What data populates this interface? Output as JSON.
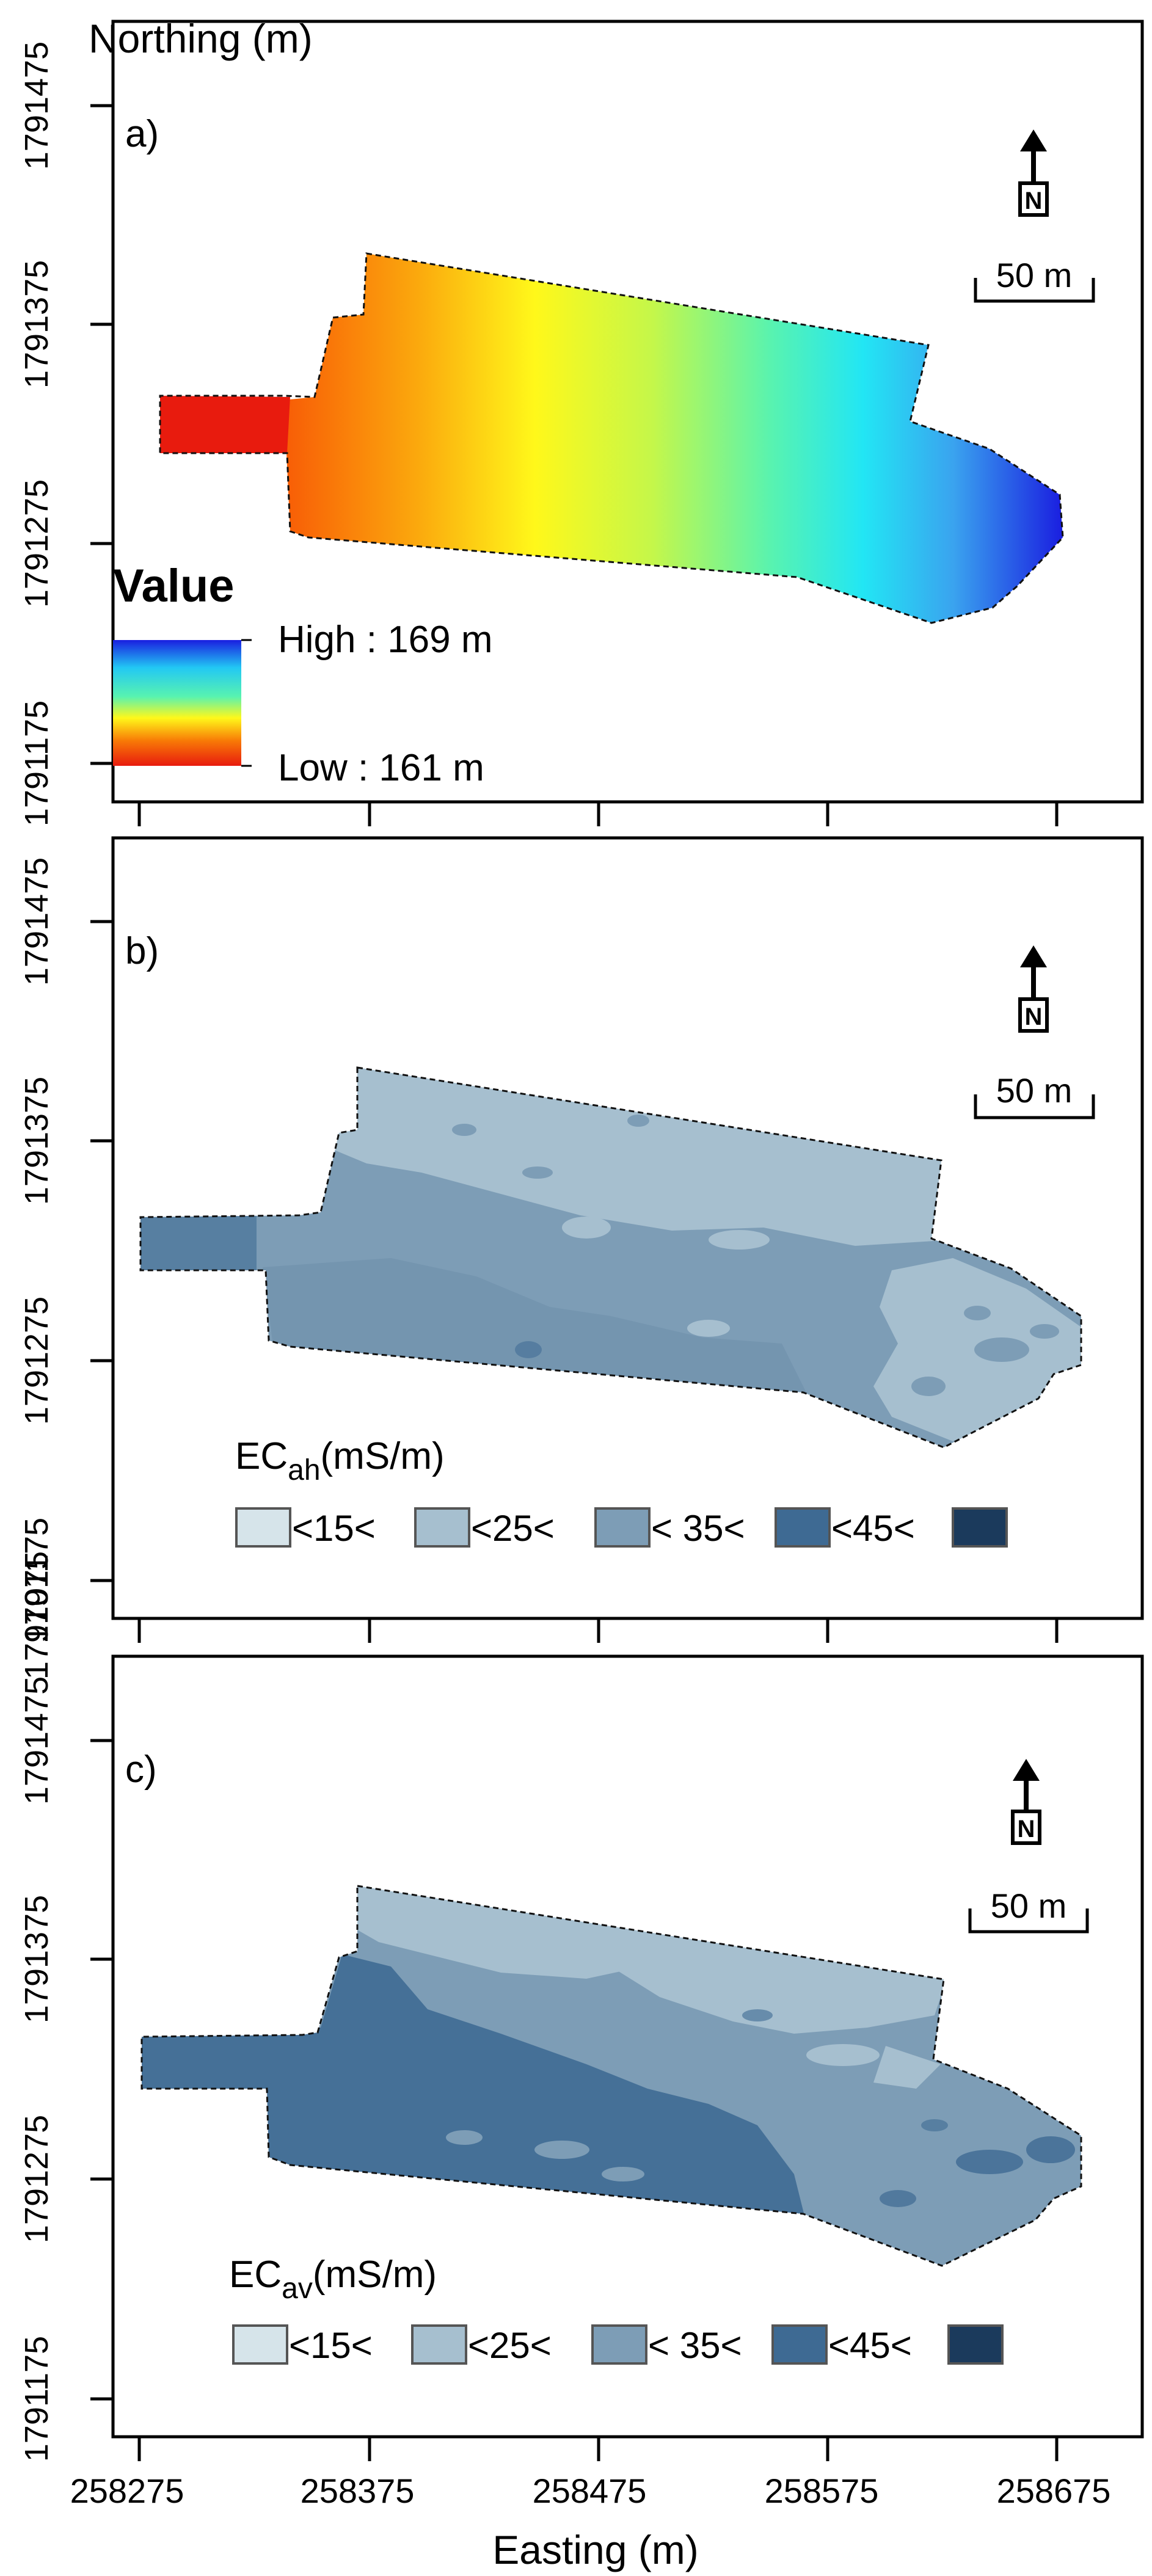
{
  "figure": {
    "y_axis_title": "Northing (m)",
    "x_axis_title": "Easting (m)",
    "x_ticks": [
      "258275",
      "258375",
      "258475",
      "258575",
      "258675"
    ],
    "y_ticks": [
      "1791475",
      "1791375",
      "1791275",
      "1791175",
      "1791075"
    ]
  },
  "colors": {
    "c_lt15": "#d6e4ea",
    "c_15_25": "#a6bfcf",
    "c_25_35": "#7d9db6",
    "c_35_45": "#3e6a93",
    "c_gt45": "#1b3a5c",
    "dem_high": "#1a1ee0",
    "dem_low": "#e81b0e"
  },
  "north_arrow": {
    "letter": "N",
    "scale_label": "50 m"
  },
  "panels": [
    {
      "letter": "a)",
      "type": "dem",
      "legend": {
        "title": "Value",
        "high": "High : 169 m",
        "low": "Low : 161 m"
      }
    },
    {
      "letter": "b)",
      "type": "ec",
      "legend": {
        "title_main": "EC",
        "title_sub": "ah",
        "title_unit": "(mS/m)",
        "classes": [
          "<15<",
          "<25<",
          "< 35<",
          "<45<"
        ]
      }
    },
    {
      "letter": "c)",
      "type": "ec",
      "legend": {
        "title_main": "EC",
        "title_sub": "av",
        "title_unit": "(mS/m)",
        "classes": [
          "<15<",
          "<25<",
          "< 35<",
          "<45<"
        ]
      }
    }
  ]
}
